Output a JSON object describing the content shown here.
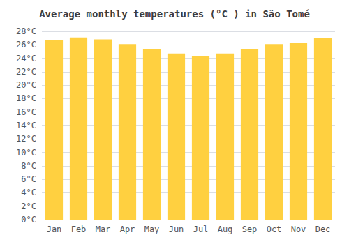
{
  "chart_data": {
    "type": "bar",
    "title": "Average monthly temperatures (°C ) in São Tomé",
    "categories": [
      "Jan",
      "Feb",
      "Mar",
      "Apr",
      "May",
      "Jun",
      "Jul",
      "Aug",
      "Sep",
      "Oct",
      "Nov",
      "Dec"
    ],
    "values": [
      26.7,
      27.1,
      26.8,
      26.1,
      25.3,
      24.7,
      24.3,
      24.7,
      25.3,
      26.1,
      26.3,
      27.0
    ],
    "color": "#FFD040",
    "ylim": [
      0,
      28
    ],
    "yticks": [
      {
        "value": 0,
        "label": "0°C"
      },
      {
        "value": 2,
        "label": "2°C"
      },
      {
        "value": 4,
        "label": "4°C"
      },
      {
        "value": 6,
        "label": "6°C"
      },
      {
        "value": 8,
        "label": "8°C"
      },
      {
        "value": 10,
        "label": "10°C"
      },
      {
        "value": 12,
        "label": "12°C"
      },
      {
        "value": 14,
        "label": "14°C"
      },
      {
        "value": 16,
        "label": "16°C"
      },
      {
        "value": 18,
        "label": "18°C"
      },
      {
        "value": 20,
        "label": "20°C"
      },
      {
        "value": 22,
        "label": "22°C"
      },
      {
        "value": 24,
        "label": "24°C"
      },
      {
        "value": 26,
        "label": "26°C"
      },
      {
        "value": 28,
        "label": "28°C"
      }
    ],
    "grid": true
  }
}
